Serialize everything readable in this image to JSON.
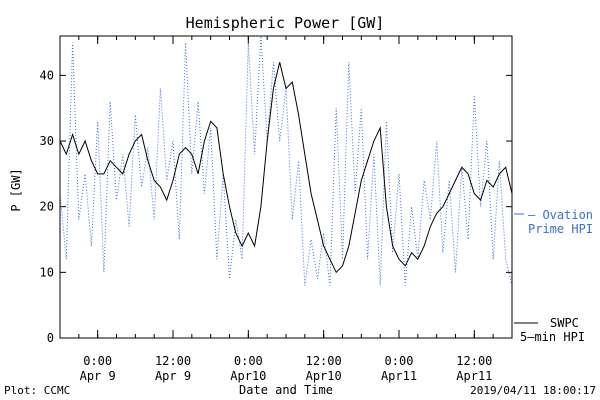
{
  "chart_data": {
    "type": "line",
    "title": "Hemispheric Power [GW]",
    "ylabel": "P [GW]",
    "xlabel": "Date and Time",
    "xlim": [
      "2019-04-08 18:00",
      "2019-04-11 18:00"
    ],
    "ylim": [
      0,
      46
    ],
    "y_ticks": [
      0,
      10,
      20,
      30,
      40
    ],
    "x_ticks": [
      {
        "t": "2019-04-09 00:00",
        "time": "0:00",
        "date": "Apr 9"
      },
      {
        "t": "2019-04-09 12:00",
        "time": "12:00",
        "date": "Apr 9"
      },
      {
        "t": "2019-04-10 00:00",
        "time": "0:00",
        "date": "Apr10"
      },
      {
        "t": "2019-04-10 12:00",
        "time": "12:00",
        "date": "Apr10"
      },
      {
        "t": "2019-04-11 00:00",
        "time": "0:00",
        "date": "Apr11"
      },
      {
        "t": "2019-04-11 12:00",
        "time": "12:00",
        "date": "Apr11"
      }
    ],
    "grid": false,
    "legend_position": "right",
    "series": [
      {
        "name": "Ovation Prime HPI",
        "legend_lines": [
          "— Ovation",
          "Prime HPI"
        ],
        "color": "#3a6fd8",
        "style": "dotted",
        "points": [
          [
            "2019-04-08 18:00",
            22
          ],
          [
            "2019-04-08 19:00",
            12
          ],
          [
            "2019-04-08 20:00",
            45
          ],
          [
            "2019-04-08 21:00",
            18
          ],
          [
            "2019-04-08 22:00",
            25
          ],
          [
            "2019-04-08 23:00",
            14
          ],
          [
            "2019-04-09 00:00",
            33
          ],
          [
            "2019-04-09 01:00",
            10
          ],
          [
            "2019-04-09 02:00",
            36
          ],
          [
            "2019-04-09 03:00",
            21
          ],
          [
            "2019-04-09 04:00",
            28
          ],
          [
            "2019-04-09 05:00",
            17
          ],
          [
            "2019-04-09 06:00",
            34
          ],
          [
            "2019-04-09 07:00",
            23
          ],
          [
            "2019-04-09 08:00",
            29
          ],
          [
            "2019-04-09 09:00",
            18
          ],
          [
            "2019-04-09 10:00",
            38
          ],
          [
            "2019-04-09 11:00",
            24
          ],
          [
            "2019-04-09 12:00",
            30
          ],
          [
            "2019-04-09 13:00",
            15
          ],
          [
            "2019-04-09 14:00",
            45
          ],
          [
            "2019-04-09 15:00",
            25
          ],
          [
            "2019-04-09 16:00",
            36
          ],
          [
            "2019-04-09 17:00",
            22
          ],
          [
            "2019-04-09 18:00",
            32
          ],
          [
            "2019-04-09 19:00",
            12
          ],
          [
            "2019-04-09 20:00",
            25
          ],
          [
            "2019-04-09 21:00",
            9
          ],
          [
            "2019-04-09 22:00",
            18
          ],
          [
            "2019-04-09 23:00",
            12
          ],
          [
            "2019-04-10 00:00",
            45
          ],
          [
            "2019-04-10 01:00",
            28
          ],
          [
            "2019-04-10 02:00",
            46
          ],
          [
            "2019-04-10 03:00",
            30
          ],
          [
            "2019-04-10 04:00",
            42
          ],
          [
            "2019-04-10 05:00",
            30
          ],
          [
            "2019-04-10 06:00",
            38
          ],
          [
            "2019-04-10 07:00",
            18
          ],
          [
            "2019-04-10 08:00",
            27
          ],
          [
            "2019-04-10 09:00",
            8
          ],
          [
            "2019-04-10 10:00",
            15
          ],
          [
            "2019-04-10 11:00",
            9
          ],
          [
            "2019-04-10 12:00",
            16
          ],
          [
            "2019-04-10 13:00",
            8
          ],
          [
            "2019-04-10 14:00",
            35
          ],
          [
            "2019-04-10 15:00",
            12
          ],
          [
            "2019-04-10 16:00",
            42
          ],
          [
            "2019-04-10 17:00",
            22
          ],
          [
            "2019-04-10 18:00",
            35
          ],
          [
            "2019-04-10 19:00",
            12
          ],
          [
            "2019-04-10 20:00",
            28
          ],
          [
            "2019-04-10 21:00",
            8
          ],
          [
            "2019-04-10 22:00",
            33
          ],
          [
            "2019-04-10 23:00",
            13
          ],
          [
            "2019-04-11 00:00",
            25
          ],
          [
            "2019-04-11 01:00",
            8
          ],
          [
            "2019-04-11 02:00",
            20
          ],
          [
            "2019-04-11 03:00",
            12
          ],
          [
            "2019-04-11 04:00",
            24
          ],
          [
            "2019-04-11 05:00",
            18
          ],
          [
            "2019-04-11 06:00",
            30
          ],
          [
            "2019-04-11 07:00",
            13
          ],
          [
            "2019-04-11 08:00",
            24
          ],
          [
            "2019-04-11 09:00",
            10
          ],
          [
            "2019-04-11 10:00",
            26
          ],
          [
            "2019-04-11 11:00",
            15
          ],
          [
            "2019-04-11 12:00",
            37
          ],
          [
            "2019-04-11 13:00",
            20
          ],
          [
            "2019-04-11 14:00",
            30
          ],
          [
            "2019-04-11 15:00",
            12
          ],
          [
            "2019-04-11 16:00",
            27
          ],
          [
            "2019-04-11 17:00",
            12
          ],
          [
            "2019-04-11 18:00",
            8
          ]
        ]
      },
      {
        "name": "SWPC 5-min HPI",
        "legend_lines": [
          "SWPC",
          "5—min HPI"
        ],
        "color": "#000000",
        "style": "solid",
        "points": [
          [
            "2019-04-08 18:00",
            30
          ],
          [
            "2019-04-08 19:00",
            28
          ],
          [
            "2019-04-08 20:00",
            31
          ],
          [
            "2019-04-08 21:00",
            28
          ],
          [
            "2019-04-08 22:00",
            30
          ],
          [
            "2019-04-08 23:00",
            27
          ],
          [
            "2019-04-09 00:00",
            25
          ],
          [
            "2019-04-09 01:00",
            25
          ],
          [
            "2019-04-09 02:00",
            27
          ],
          [
            "2019-04-09 03:00",
            26
          ],
          [
            "2019-04-09 04:00",
            25
          ],
          [
            "2019-04-09 05:00",
            28
          ],
          [
            "2019-04-09 06:00",
            30
          ],
          [
            "2019-04-09 07:00",
            31
          ],
          [
            "2019-04-09 08:00",
            27
          ],
          [
            "2019-04-09 09:00",
            24
          ],
          [
            "2019-04-09 10:00",
            23
          ],
          [
            "2019-04-09 11:00",
            21
          ],
          [
            "2019-04-09 12:00",
            24
          ],
          [
            "2019-04-09 13:00",
            28
          ],
          [
            "2019-04-09 14:00",
            29
          ],
          [
            "2019-04-09 15:00",
            28
          ],
          [
            "2019-04-09 16:00",
            25
          ],
          [
            "2019-04-09 17:00",
            30
          ],
          [
            "2019-04-09 18:00",
            33
          ],
          [
            "2019-04-09 19:00",
            32
          ],
          [
            "2019-04-09 20:00",
            25
          ],
          [
            "2019-04-09 21:00",
            20
          ],
          [
            "2019-04-09 22:00",
            16
          ],
          [
            "2019-04-09 23:00",
            14
          ],
          [
            "2019-04-10 00:00",
            16
          ],
          [
            "2019-04-10 01:00",
            14
          ],
          [
            "2019-04-10 02:00",
            20
          ],
          [
            "2019-04-10 03:00",
            30
          ],
          [
            "2019-04-10 04:00",
            38
          ],
          [
            "2019-04-10 05:00",
            42
          ],
          [
            "2019-04-10 06:00",
            38
          ],
          [
            "2019-04-10 07:00",
            39
          ],
          [
            "2019-04-10 08:00",
            34
          ],
          [
            "2019-04-10 09:00",
            28
          ],
          [
            "2019-04-10 10:00",
            22
          ],
          [
            "2019-04-10 11:00",
            18
          ],
          [
            "2019-04-10 12:00",
            14
          ],
          [
            "2019-04-10 13:00",
            12
          ],
          [
            "2019-04-10 14:00",
            10
          ],
          [
            "2019-04-10 15:00",
            11
          ],
          [
            "2019-04-10 16:00",
            14
          ],
          [
            "2019-04-10 17:00",
            19
          ],
          [
            "2019-04-10 18:00",
            24
          ],
          [
            "2019-04-10 19:00",
            27
          ],
          [
            "2019-04-10 20:00",
            30
          ],
          [
            "2019-04-10 21:00",
            32
          ],
          [
            "2019-04-10 22:00",
            20
          ],
          [
            "2019-04-10 23:00",
            14
          ],
          [
            "2019-04-11 00:00",
            12
          ],
          [
            "2019-04-11 01:00",
            11
          ],
          [
            "2019-04-11 02:00",
            13
          ],
          [
            "2019-04-11 03:00",
            12
          ],
          [
            "2019-04-11 04:00",
            14
          ],
          [
            "2019-04-11 05:00",
            17
          ],
          [
            "2019-04-11 06:00",
            19
          ],
          [
            "2019-04-11 07:00",
            20
          ],
          [
            "2019-04-11 08:00",
            22
          ],
          [
            "2019-04-11 09:00",
            24
          ],
          [
            "2019-04-11 10:00",
            26
          ],
          [
            "2019-04-11 11:00",
            25
          ],
          [
            "2019-04-11 12:00",
            22
          ],
          [
            "2019-04-11 13:00",
            21
          ],
          [
            "2019-04-11 14:00",
            24
          ],
          [
            "2019-04-11 15:00",
            23
          ],
          [
            "2019-04-11 16:00",
            25
          ],
          [
            "2019-04-11 17:00",
            26
          ],
          [
            "2019-04-11 18:00",
            22
          ]
        ]
      }
    ]
  },
  "footer": {
    "left": "Plot: CCMC",
    "right": "2019/04/11 18:00:17"
  }
}
